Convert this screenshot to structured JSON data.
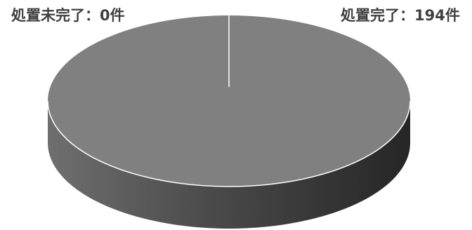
{
  "chart_data": {
    "type": "pie",
    "style": "3d",
    "slices": [
      {
        "label": "処置未完了",
        "value": 0,
        "unit": "件"
      },
      {
        "label": "処置完了",
        "value": 194,
        "unit": "件"
      }
    ],
    "labels_text": [
      "処置未完了：0件",
      "処置完了：194件"
    ],
    "colors": {
      "top": "#808080",
      "side_dark": "#2e2e2e",
      "side_light": "#6e6e6e",
      "edge": "#ffffff"
    }
  }
}
